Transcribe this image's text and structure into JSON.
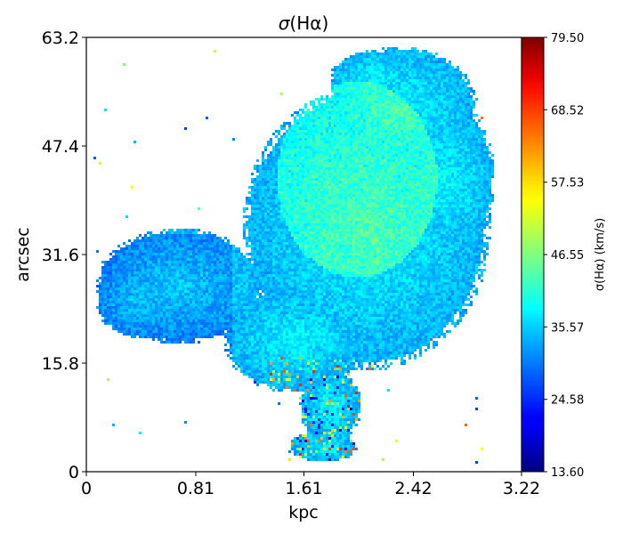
{
  "chart_data": {
    "type": "heatmap",
    "title": "σ(Hα)",
    "xlabel": "kpc",
    "ylabel": "arcsec",
    "xlim": [
      0,
      3.22
    ],
    "ylim": [
      0,
      63.2
    ],
    "x_ticks": [
      "0",
      "0.81",
      "1.61",
      "2.42",
      "3.22"
    ],
    "y_ticks": [
      "0",
      "15.8",
      "31.6",
      "47.4",
      "63.2"
    ],
    "grid": false,
    "colormap": "jet",
    "colorbar": {
      "label": "σ(Hα) (km/s)",
      "range": [
        13.6,
        79.5
      ],
      "ticks": [
        "13.60",
        "24.58",
        "35.57",
        "46.55",
        "57.53",
        "68.52",
        "79.50"
      ]
    },
    "field": {
      "description_values_kms": {
        "typical": 35,
        "outskirts_low": 29,
        "center_high": 40,
        "south_tail_noise_max": 65
      },
      "background": "#ffffff"
    }
  }
}
